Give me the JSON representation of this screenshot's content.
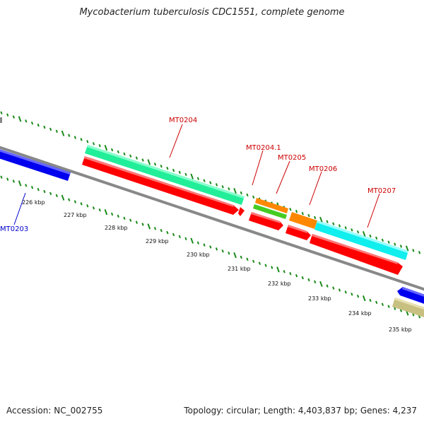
{
  "title": "Mycobacterium tuberculosis CDC1551, complete genome",
  "footer": {
    "accession": "Accession: NC_002755",
    "summary": "Topology: circular; Length: 4,403,837 bp; Genes: 4,237"
  },
  "colors": {
    "backbone": "#888888",
    "tick": "#1a8a1a",
    "cds_red": "#ff0000",
    "gene_red_label": "#cc0000",
    "gene_blue_label": "#0000cc",
    "mint": "#22ee99",
    "orange": "#ff8800",
    "green": "#44cc22",
    "cyan": "#11eeee",
    "blue": "#0000ee",
    "khaki": "#c8c080"
  },
  "scale_labels": [
    {
      "text": "226 kbp"
    },
    {
      "text": "227 kbp"
    },
    {
      "text": "228 kbp"
    },
    {
      "text": "229 kbp"
    },
    {
      "text": "230 kbp"
    },
    {
      "text": "231 kbp"
    },
    {
      "text": "232 kbp"
    },
    {
      "text": "233 kbp"
    },
    {
      "text": "234 kbp"
    },
    {
      "text": "235 kbp"
    }
  ],
  "gene_labels": [
    {
      "text": "MT0203",
      "strand": "reverse"
    },
    {
      "text": "MT0204",
      "strand": "forward"
    },
    {
      "text": "MT0204.1",
      "strand": "forward"
    },
    {
      "text": "MT0205",
      "strand": "forward"
    },
    {
      "text": "MT0206",
      "strand": "forward"
    },
    {
      "text": "MT0207",
      "strand": "forward"
    }
  ]
}
